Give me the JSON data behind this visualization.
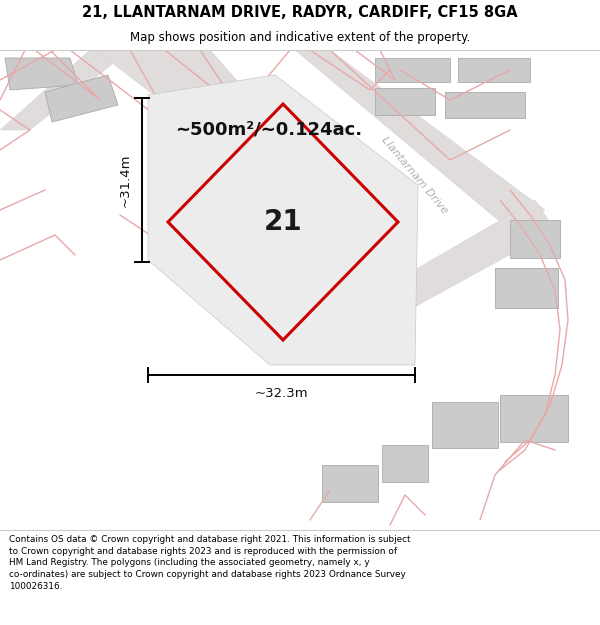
{
  "title": "21, LLANTARNAM DRIVE, RADYR, CARDIFF, CF15 8GA",
  "subtitle": "Map shows position and indicative extent of the property.",
  "footer": "Contains OS data © Crown copyright and database right 2021. This information is subject\nto Crown copyright and database rights 2023 and is reproduced with the permission of\nHM Land Registry. The polygons (including the associated geometry, namely x, y\nco-ordinates) are subject to Crown copyright and database rights 2023 Ordnance Survey\n100026316.",
  "area_label": "~500m²/~0.124ac.",
  "width_label": "~32.3m",
  "height_label": "~31.4m",
  "plot_number": "21",
  "road_label": "Llantarnam Drive",
  "map_bg": "#f2f0f0",
  "building_color": "#cbcbcb",
  "plot_outline": "#cc0000",
  "dim_color": "#111111",
  "road_label_color": "#b0b0b0",
  "pink_road": "#e8a8a8",
  "title_sep_color": "#cccccc",
  "footer_sep_color": "#cccccc"
}
